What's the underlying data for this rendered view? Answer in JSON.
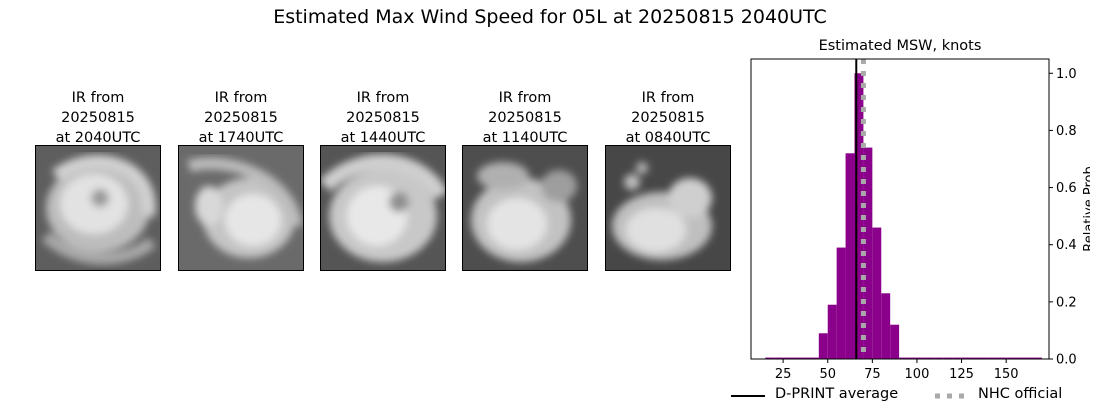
{
  "suptitle": "Estimated Max Wind Speed for 05L at 20250815 2040UTC",
  "ir_panels": [
    {
      "line1": "IR from",
      "line2": "20250815",
      "line3": "at 2040UTC"
    },
    {
      "line1": "IR from",
      "line2": "20250815",
      "line3": "at 1740UTC"
    },
    {
      "line1": "IR from",
      "line2": "20250815",
      "line3": "at 1440UTC"
    },
    {
      "line1": "IR from",
      "line2": "20250815",
      "line3": "at 1140UTC"
    },
    {
      "line1": "IR from",
      "line2": "20250815",
      "line3": "at 0840UTC"
    }
  ],
  "colors": {
    "bars": "#8b008b",
    "dprint": "#000000",
    "nhc": "#a9a9a9"
  },
  "chart_data": {
    "type": "bar",
    "title": "Estimated MSW, knots",
    "xlabel": "",
    "ylabel": "Relative Prob",
    "xlim": [
      7,
      174
    ],
    "ylim": [
      0,
      1.05
    ],
    "xticks": [
      25,
      50,
      75,
      100,
      125,
      150
    ],
    "yticks": [
      0.0,
      0.2,
      0.4,
      0.6,
      0.8,
      1.0
    ],
    "ytick_labels": [
      "0.0",
      "0.2",
      "0.4",
      "0.6",
      "0.8",
      "1.0"
    ],
    "y_axis_side": "right",
    "bin_width": 5,
    "bins": [
      {
        "x": 15,
        "y": 0.005
      },
      {
        "x": 20,
        "y": 0.005
      },
      {
        "x": 25,
        "y": 0.005
      },
      {
        "x": 30,
        "y": 0.005
      },
      {
        "x": 35,
        "y": 0.005
      },
      {
        "x": 40,
        "y": 0.005
      },
      {
        "x": 45,
        "y": 0.09
      },
      {
        "x": 50,
        "y": 0.19
      },
      {
        "x": 55,
        "y": 0.39
      },
      {
        "x": 60,
        "y": 0.72
      },
      {
        "x": 65,
        "y": 1.0
      },
      {
        "x": 70,
        "y": 0.74
      },
      {
        "x": 75,
        "y": 0.46
      },
      {
        "x": 80,
        "y": 0.23
      },
      {
        "x": 85,
        "y": 0.12
      },
      {
        "x": 90,
        "y": 0.005
      },
      {
        "x": 95,
        "y": 0.005
      },
      {
        "x": 100,
        "y": 0.005
      },
      {
        "x": 105,
        "y": 0.005
      },
      {
        "x": 110,
        "y": 0.005
      },
      {
        "x": 115,
        "y": 0.005
      },
      {
        "x": 120,
        "y": 0.005
      },
      {
        "x": 125,
        "y": 0.005
      },
      {
        "x": 130,
        "y": 0.005
      },
      {
        "x": 135,
        "y": 0.005
      },
      {
        "x": 140,
        "y": 0.005
      },
      {
        "x": 145,
        "y": 0.005
      },
      {
        "x": 150,
        "y": 0.005
      },
      {
        "x": 155,
        "y": 0.005
      },
      {
        "x": 160,
        "y": 0.005
      },
      {
        "x": 165,
        "y": 0.005
      }
    ],
    "dprint_average": 66,
    "nhc_official": 70,
    "legend": [
      {
        "label": "D-PRINT average",
        "style": "solid"
      },
      {
        "label": "NHC official",
        "style": "dotted"
      }
    ],
    "legend_position": "bottom"
  }
}
